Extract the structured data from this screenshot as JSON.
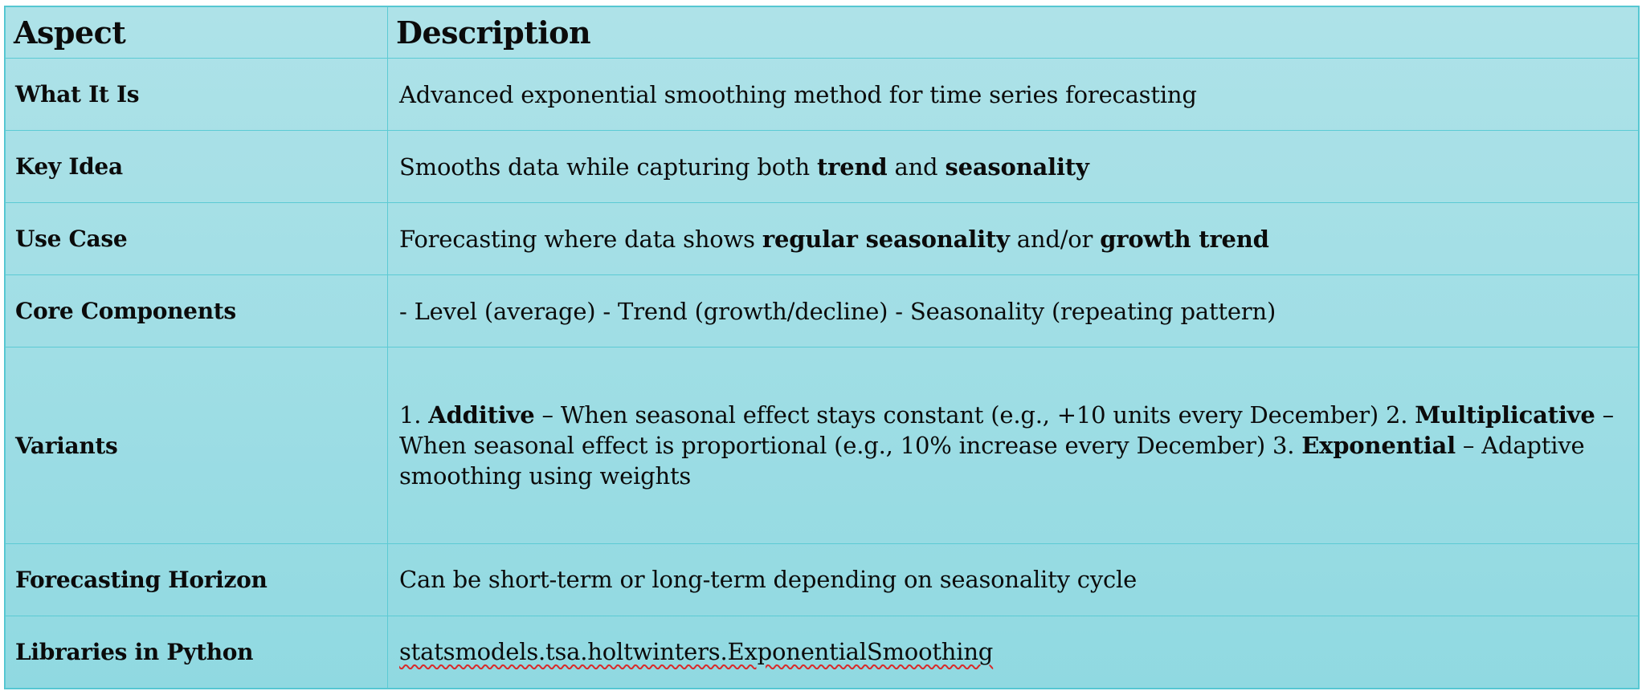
{
  "header": {
    "aspect": "Aspect",
    "description": "Description"
  },
  "rows": [
    {
      "aspect": "What It Is",
      "description": [
        {
          "text": "Advanced exponential smoothing method for time series forecasting",
          "bold": false
        }
      ]
    },
    {
      "aspect": "Key Idea",
      "description": [
        {
          "text": "Smooths data while capturing both ",
          "bold": false
        },
        {
          "text": "trend",
          "bold": true
        },
        {
          "text": " and ",
          "bold": false
        },
        {
          "text": "seasonality",
          "bold": true
        }
      ]
    },
    {
      "aspect": "Use Case",
      "description": [
        {
          "text": "Forecasting where data shows ",
          "bold": false
        },
        {
          "text": "regular seasonality",
          "bold": true
        },
        {
          "text": " and/or ",
          "bold": false
        },
        {
          "text": "growth trend",
          "bold": true
        }
      ]
    },
    {
      "aspect": "Core Components",
      "description": [
        {
          "text": "- Level (average) - Trend (growth/decline) - Seasonality (repeating pattern)",
          "bold": false
        }
      ]
    },
    {
      "aspect": "Variants",
      "description": [
        {
          "text": "1. ",
          "bold": false
        },
        {
          "text": "Additive",
          "bold": true
        },
        {
          "text": " – When seasonal effect stays constant (e.g., +10 units every December) 2. ",
          "bold": false
        },
        {
          "text": "Multiplicative",
          "bold": true
        },
        {
          "text": " – When seasonal effect is proportional (e.g., 10% increase every December) 3. ",
          "bold": false
        },
        {
          "text": "Exponential",
          "bold": true
        },
        {
          "text": " – Adaptive smoothing using weights",
          "bold": false
        }
      ]
    },
    {
      "aspect": "Forecasting Horizon",
      "description": [
        {
          "text": "Can be short-term or long-term depending on seasonality cycle",
          "bold": false
        }
      ]
    },
    {
      "aspect": "Libraries in Python",
      "description": [
        {
          "text": "statsmodels.tsa.holtwinters.ExponentialSmoothing",
          "bold": false,
          "spellcheck_flag": true
        }
      ]
    }
  ],
  "colors": {
    "background_top": "#aee2e8",
    "background_bottom": "#90d9e1",
    "grid_line": "#5ccad4",
    "text": "#0b0b0b",
    "spellcheck_underline": "#d92a2a"
  }
}
